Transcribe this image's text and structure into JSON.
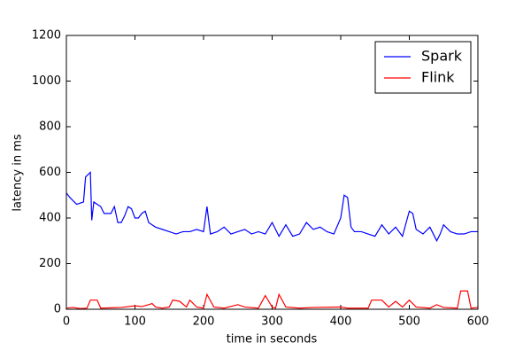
{
  "chart_data": {
    "type": "line",
    "xlabel": "time in seconds",
    "ylabel": "latency in ms",
    "xlim": [
      0,
      600
    ],
    "ylim": [
      0,
      1200
    ],
    "xticks": [
      0,
      100,
      200,
      300,
      400,
      500,
      600
    ],
    "yticks": [
      0,
      200,
      400,
      600,
      800,
      1000,
      1200
    ],
    "legend": "upper right",
    "series": [
      {
        "name": "Spark",
        "color": "#0000ff",
        "x": [
          0,
          5,
          15,
          25,
          28,
          35,
          37,
          40,
          50,
          55,
          65,
          70,
          75,
          80,
          85,
          90,
          95,
          100,
          105,
          110,
          115,
          120,
          125,
          130,
          140,
          150,
          160,
          170,
          180,
          190,
          200,
          205,
          210,
          220,
          230,
          240,
          250,
          260,
          270,
          280,
          290,
          300,
          305,
          310,
          320,
          330,
          340,
          350,
          360,
          370,
          380,
          390,
          400,
          405,
          410,
          415,
          420,
          430,
          440,
          450,
          460,
          470,
          480,
          490,
          500,
          505,
          510,
          520,
          530,
          540,
          545,
          550,
          560,
          570,
          580,
          590,
          600
        ],
        "values": [
          510,
          490,
          460,
          470,
          580,
          600,
          390,
          470,
          450,
          420,
          420,
          450,
          380,
          380,
          410,
          450,
          440,
          400,
          400,
          420,
          430,
          380,
          370,
          360,
          350,
          340,
          330,
          340,
          340,
          350,
          340,
          450,
          330,
          340,
          360,
          330,
          340,
          350,
          330,
          340,
          330,
          380,
          350,
          320,
          370,
          320,
          330,
          380,
          350,
          360,
          340,
          330,
          400,
          500,
          490,
          360,
          340,
          340,
          330,
          320,
          370,
          330,
          360,
          320,
          430,
          420,
          350,
          330,
          360,
          300,
          330,
          370,
          340,
          330,
          330,
          340,
          340
        ]
      },
      {
        "name": "Flink",
        "color": "#ff0000",
        "x": [
          0,
          10,
          20,
          30,
          35,
          45,
          50,
          80,
          100,
          110,
          120,
          125,
          130,
          140,
          150,
          155,
          165,
          175,
          180,
          190,
          200,
          205,
          215,
          230,
          250,
          260,
          280,
          290,
          300,
          305,
          310,
          320,
          340,
          360,
          400,
          410,
          440,
          445,
          460,
          470,
          480,
          490,
          500,
          510,
          530,
          540,
          550,
          570,
          575,
          585,
          590,
          600
        ],
        "values": [
          5,
          8,
          3,
          5,
          40,
          40,
          5,
          8,
          15,
          12,
          20,
          25,
          10,
          5,
          10,
          40,
          35,
          10,
          40,
          10,
          5,
          65,
          10,
          5,
          20,
          10,
          5,
          60,
          10,
          5,
          65,
          10,
          5,
          8,
          10,
          5,
          5,
          40,
          40,
          10,
          35,
          10,
          40,
          10,
          5,
          20,
          8,
          5,
          80,
          80,
          5,
          8
        ]
      }
    ]
  }
}
